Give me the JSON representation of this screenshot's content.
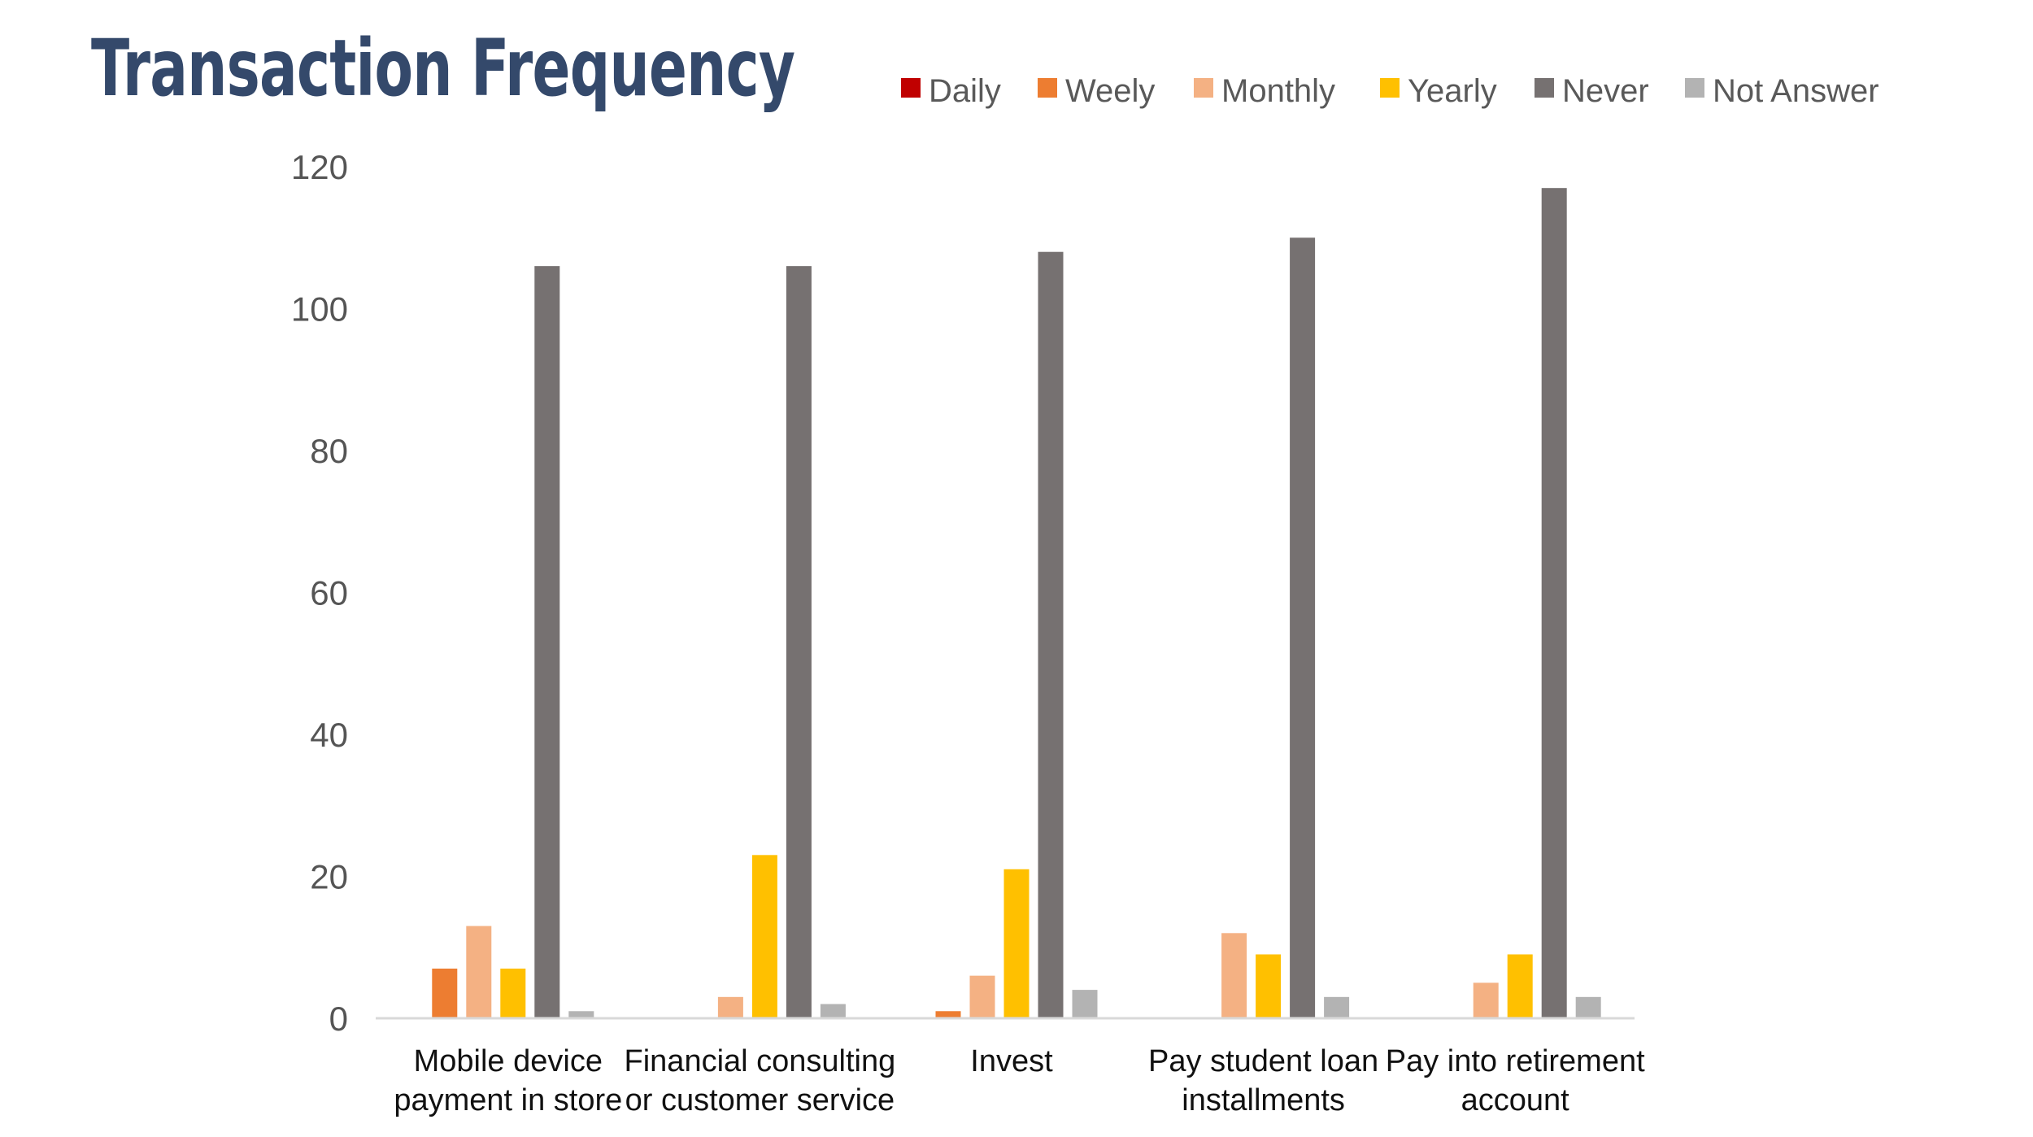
{
  "chart_data": {
    "type": "bar",
    "title": "Transaction Frequency",
    "categories": [
      [
        "Mobile device",
        "payment in store"
      ],
      [
        "Financial consulting",
        "or customer service"
      ],
      [
        "Invest"
      ],
      [
        "Pay student loan",
        "installments"
      ],
      [
        "Pay into retirement",
        "account"
      ]
    ],
    "series": [
      {
        "name": "Daily",
        "color": "#c00000",
        "values": [
          0,
          0,
          0,
          0,
          0
        ]
      },
      {
        "name": "Weely",
        "color": "#ed7d31",
        "values": [
          7,
          0,
          1,
          0,
          0
        ]
      },
      {
        "name": "Monthly",
        "color": "#f4b183",
        "values": [
          13,
          3,
          6,
          12,
          5
        ]
      },
      {
        "name": "Yearly",
        "color": "#ffc000",
        "values": [
          7,
          23,
          21,
          9,
          9
        ]
      },
      {
        "name": "Never",
        "color": "#767171",
        "values": [
          106,
          106,
          108,
          110,
          117
        ]
      },
      {
        "name": "Not Answer",
        "color": "#b3b3b3",
        "values": [
          1,
          2,
          4,
          3,
          3
        ]
      }
    ],
    "yticks": [
      0,
      20,
      40,
      60,
      80,
      100,
      120
    ],
    "ylim": [
      0,
      120
    ],
    "xlabel": "",
    "ylabel": "",
    "grid": false,
    "legend": "top"
  }
}
